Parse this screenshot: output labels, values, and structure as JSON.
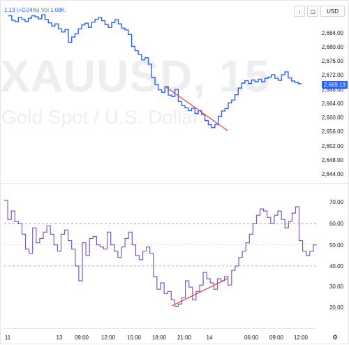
{
  "legend": {
    "change": "1.13 (+0.04%)",
    "volume_label": "Vol",
    "volume_value": "1.08K"
  },
  "watermark": {
    "symbol": "XAUUSD, 15",
    "description": "Gold Spot / U.S. Dollar"
  },
  "toolbar": {
    "arrow_icon": "down-arrow-icon",
    "fullscreen_icon": "square-icon",
    "currency": "USD"
  },
  "price_axis": {
    "labels": [
      "2,684.00",
      "2,680.00",
      "2,676.00",
      "2,672.00",
      "2,668.00",
      "2,664.00",
      "2,660.00",
      "2,656.00",
      "2,652.00",
      "2,648.00",
      "2,644.00"
    ],
    "current_price": "2,669.19"
  },
  "rsi_axis": {
    "labels": [
      "70.00",
      "60.00",
      "50.00",
      "40.00",
      "30.00",
      "20.00"
    ]
  },
  "time_axis": {
    "labels": [
      "11",
      "13",
      "09:00",
      "12:00",
      "15:00",
      "18:00",
      "21:00",
      "14",
      "06:00",
      "09:00",
      "12:00"
    ]
  },
  "colors": {
    "price_line": "#2962ff",
    "rsi_line": "#7e57c2",
    "trendline": "#f23645",
    "price_label_bg": "#2962ff"
  },
  "chart_data": [
    {
      "type": "line",
      "series": [
        {
          "values": [
            2688.5,
            2687.2,
            2686.8,
            2688.0,
            2687.5,
            2686.9,
            2687.8,
            2688.5,
            2688.2,
            2687.6,
            2688.8,
            2687.4,
            2686.5,
            2685.6,
            2686.2,
            2684.8,
            2683.9,
            2684.6,
            2681.0,
            2682.5,
            2683.4,
            2684.8,
            2685.9,
            2686.4,
            2685.2,
            2686.7,
            2687.5,
            2688.0,
            2687.1,
            2686.0,
            2685.2,
            2686.6,
            2687.4,
            2686.2,
            2685.0,
            2684.5,
            2683.2,
            2679.8,
            2678.6,
            2677.5,
            2676.0,
            2676.6,
            2674.8,
            2671.0,
            2669.0,
            2667.5,
            2666.8,
            2668.4,
            2666.0,
            2665.6,
            2667.6,
            2664.2,
            2663.0,
            2662.4,
            2661.6,
            2662.3,
            2660.8,
            2661.6,
            2660.5,
            2658.8,
            2657.6,
            2656.8,
            2657.7,
            2660.0,
            2661.5,
            2662.2,
            2663.8,
            2664.6,
            2666.1,
            2668.0,
            2669.4,
            2670.1,
            2669.3,
            2670.3,
            2669.8,
            2670.5,
            2669.8,
            2670.8,
            2671.1,
            2671.8,
            2670.8,
            2670.2,
            2671.8,
            2672.6,
            2670.9,
            2670.0,
            2669.6,
            2669.2
          ]
        }
      ]
    },
    {
      "type": "line",
      "series": [
        {
          "values": [
            71,
            62,
            66,
            61,
            60,
            55,
            48,
            46,
            58,
            51,
            53,
            56,
            59,
            55,
            50,
            47,
            55,
            57,
            52,
            48,
            40,
            33,
            51,
            45,
            53,
            54,
            50,
            49,
            48,
            56,
            50,
            47,
            44,
            49,
            53,
            56,
            50,
            45,
            43,
            47,
            49,
            46,
            35,
            29,
            32,
            27,
            28,
            24,
            21,
            22,
            25,
            33,
            30,
            24,
            28,
            31,
            37,
            34,
            32,
            29,
            34,
            33,
            35,
            31,
            38,
            40,
            44,
            47,
            51,
            55,
            60,
            64,
            67,
            66,
            63,
            60,
            64,
            66,
            62,
            58,
            61,
            65,
            68,
            52,
            47,
            45,
            47,
            50
          ]
        }
      ],
      "ylim": [
        15,
        72
      ]
    }
  ]
}
